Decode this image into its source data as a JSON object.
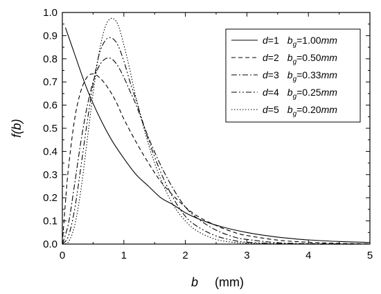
{
  "chart_data": {
    "type": "line",
    "xlabel": {
      "var": "b",
      "unit": "(mm)"
    },
    "ylabel": "f(b)",
    "xlim": [
      0,
      5
    ],
    "ylim": [
      0,
      1.0
    ],
    "x_ticks": [
      "0",
      "1",
      "2",
      "3",
      "4",
      "5"
    ],
    "y_ticks": [
      "0.0",
      "0.1",
      "0.2",
      "0.3",
      "0.4",
      "0.5",
      "0.6",
      "0.7",
      "0.8",
      "0.9",
      "1.0"
    ],
    "grid": false,
    "legend_position": "top-right",
    "series": [
      {
        "d": "1",
        "bg": "1.00",
        "unit": "mm",
        "dash": "solid",
        "x": [
          0.05,
          0.2,
          0.4,
          0.6,
          0.8,
          1.0,
          1.2,
          1.4,
          1.6,
          1.8,
          2.0,
          2.2,
          2.4,
          2.6,
          2.8,
          3.0,
          3.2,
          3.5,
          3.8,
          4.0,
          4.5,
          5.0
        ],
        "y": [
          0.935,
          0.82,
          0.67,
          0.55,
          0.45,
          0.37,
          0.3,
          0.25,
          0.2,
          0.17,
          0.135,
          0.11,
          0.09,
          0.074,
          0.061,
          0.05,
          0.041,
          0.03,
          0.022,
          0.018,
          0.011,
          0.007
        ]
      },
      {
        "d": "2",
        "bg": "0.50",
        "unit": "mm",
        "dash": "dashed",
        "x": [
          0.0,
          0.05,
          0.1,
          0.2,
          0.3,
          0.4,
          0.5,
          0.6,
          0.7,
          0.8,
          0.9,
          1.0,
          1.2,
          1.4,
          1.6,
          1.8,
          2.0,
          2.2,
          2.5,
          2.8,
          3.0,
          3.5,
          4.0,
          4.5,
          5.0
        ],
        "y": [
          0.0,
          0.18,
          0.33,
          0.54,
          0.66,
          0.72,
          0.735,
          0.72,
          0.69,
          0.65,
          0.6,
          0.54,
          0.44,
          0.35,
          0.27,
          0.21,
          0.16,
          0.12,
          0.08,
          0.05,
          0.037,
          0.017,
          0.008,
          0.003,
          0.001
        ]
      },
      {
        "d": "3",
        "bg": "0.33",
        "unit": "mm",
        "dash": "dashdot",
        "x": [
          0.0,
          0.1,
          0.2,
          0.3,
          0.4,
          0.5,
          0.6,
          0.7,
          0.8,
          0.9,
          1.0,
          1.1,
          1.2,
          1.4,
          1.6,
          1.8,
          2.0,
          2.2,
          2.5,
          2.8,
          3.0,
          3.5,
          4.0,
          5.0
        ],
        "y": [
          0.0,
          0.09,
          0.26,
          0.44,
          0.59,
          0.7,
          0.77,
          0.8,
          0.8,
          0.77,
          0.72,
          0.66,
          0.6,
          0.46,
          0.34,
          0.24,
          0.16,
          0.11,
          0.06,
          0.03,
          0.02,
          0.006,
          0.002,
          0.0
        ]
      },
      {
        "d": "4",
        "bg": "0.25",
        "unit": "mm",
        "dash": "dashdotdot",
        "x": [
          0.0,
          0.1,
          0.2,
          0.3,
          0.4,
          0.5,
          0.6,
          0.7,
          0.8,
          0.9,
          1.0,
          1.1,
          1.2,
          1.4,
          1.6,
          1.8,
          2.0,
          2.2,
          2.5,
          2.8,
          3.0,
          3.5,
          4.0,
          5.0
        ],
        "y": [
          0.0,
          0.035,
          0.15,
          0.33,
          0.52,
          0.69,
          0.82,
          0.88,
          0.89,
          0.86,
          0.79,
          0.7,
          0.62,
          0.45,
          0.31,
          0.2,
          0.12,
          0.075,
          0.035,
          0.015,
          0.008,
          0.002,
          0.0,
          0.0
        ]
      },
      {
        "d": "5",
        "bg": "0.20",
        "unit": "mm",
        "dash": "dotted",
        "x": [
          0.0,
          0.1,
          0.2,
          0.3,
          0.4,
          0.5,
          0.6,
          0.7,
          0.8,
          0.9,
          1.0,
          1.1,
          1.2,
          1.4,
          1.6,
          1.8,
          2.0,
          2.2,
          2.5,
          2.8,
          3.0,
          3.5,
          4.0,
          5.0
        ],
        "y": [
          0.0,
          0.01,
          0.08,
          0.23,
          0.44,
          0.65,
          0.83,
          0.94,
          0.975,
          0.95,
          0.86,
          0.75,
          0.63,
          0.43,
          0.28,
          0.17,
          0.1,
          0.055,
          0.02,
          0.007,
          0.004,
          0.001,
          0.0,
          0.0
        ]
      }
    ]
  }
}
